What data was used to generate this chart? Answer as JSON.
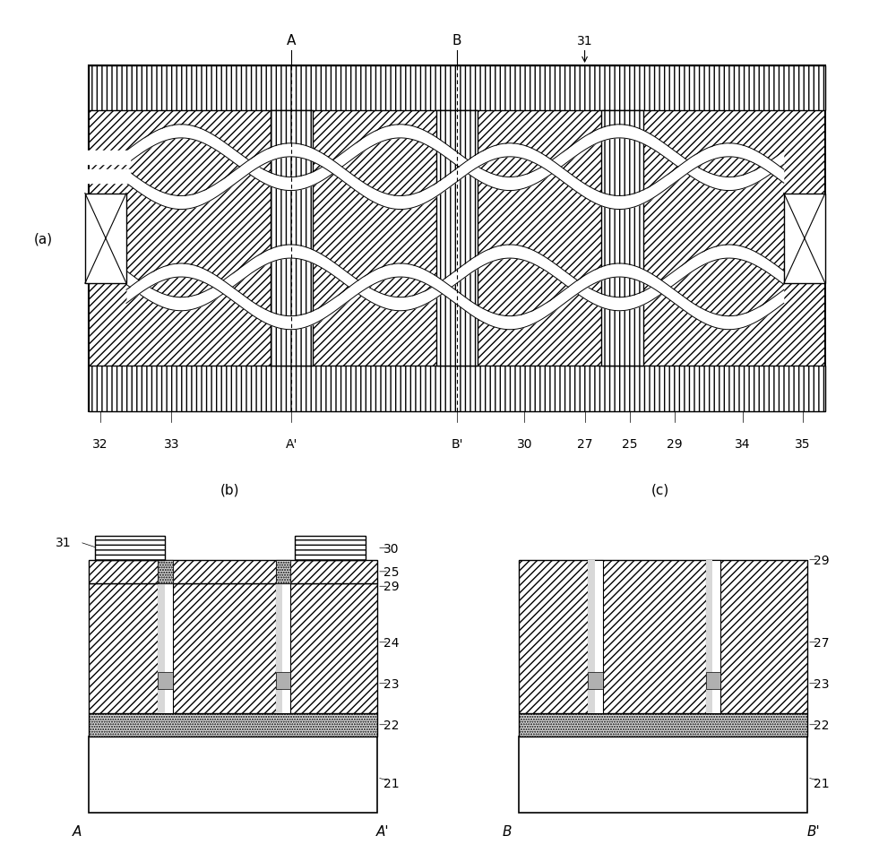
{
  "bg_color": "#ffffff",
  "label_fontsize": 10,
  "panel_a_label": "(a)",
  "panel_b_label": "(b)",
  "panel_c_label": "(c)"
}
